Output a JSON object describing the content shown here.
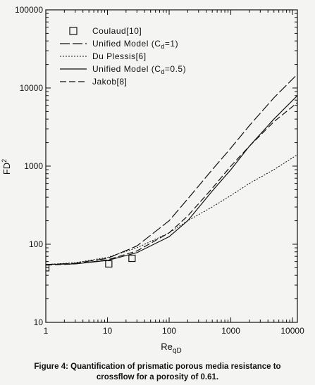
{
  "chart_data": {
    "type": "line",
    "title": "",
    "xlabel": "Re_qD",
    "ylabel": "FD²",
    "xlabel_main": "Re",
    "xlabel_sub": "qD",
    "ylabel_main": "FD",
    "ylabel_sup": "2",
    "xscale": "log",
    "yscale": "log",
    "xlim": [
      1,
      12000
    ],
    "ylim": [
      10,
      100000
    ],
    "grid": false,
    "legend_position": "top-left",
    "x_ticks": [
      "1",
      "10",
      "100",
      "1000",
      "10000"
    ],
    "y_ticks": [
      "10",
      "100",
      "1000",
      "10000",
      "100000"
    ],
    "series": [
      {
        "name": "Coulaud[10]",
        "style": "square-markers",
        "x": [
          1,
          10.5,
          25
        ],
        "y": [
          50,
          56,
          66
        ]
      },
      {
        "name": "Unified Model (Cd=1)",
        "name_parts": [
          "Unified Model (C",
          "d",
          "=1)"
        ],
        "style": "long-dash",
        "x": [
          1,
          3,
          10,
          30,
          100,
          200,
          500,
          1000,
          2000,
          5000,
          12000
        ],
        "y": [
          55,
          57,
          66,
          95,
          200,
          380,
          900,
          1700,
          3300,
          7500,
          15000
        ]
      },
      {
        "name": "Du Plessis[6]",
        "style": "dotted",
        "x": [
          1,
          3,
          10,
          30,
          100,
          200,
          500,
          1000,
          2000,
          5000,
          12000
        ],
        "y": [
          55,
          58,
          68,
          90,
          140,
          200,
          300,
          420,
          600,
          900,
          1400
        ]
      },
      {
        "name": "Unified Model (Cd=0.5)",
        "name_parts": [
          "Unified Model (C",
          "d",
          "=0.5)"
        ],
        "style": "solid",
        "x": [
          1,
          3,
          10,
          30,
          100,
          200,
          500,
          1000,
          2000,
          5000,
          12000
        ],
        "y": [
          55,
          56,
          62,
          78,
          125,
          200,
          480,
          900,
          1800,
          4000,
          8000
        ]
      },
      {
        "name": "Jakob[8]",
        "style": "medium-dash",
        "x": [
          1,
          3,
          10,
          30,
          100,
          200,
          500,
          1000,
          2000,
          5000,
          12000
        ],
        "y": [
          54,
          56,
          63,
          82,
          140,
          230,
          520,
          1000,
          1800,
          3700,
          6500
        ]
      }
    ]
  },
  "caption": {
    "line1": "Figure 4: Quantification of prismatic porous media resistance to",
    "line2": "crossflow for a porosity of 0.61."
  }
}
